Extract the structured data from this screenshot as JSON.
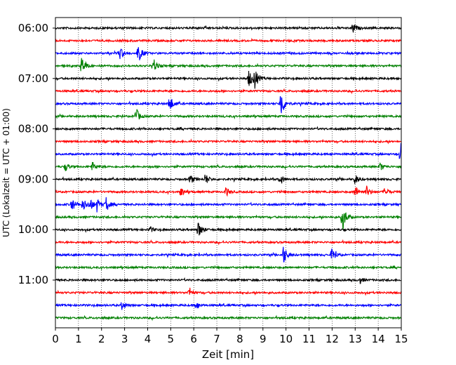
{
  "chart_data": {
    "type": "line",
    "title": "",
    "xlabel": "Zeit  [min]",
    "ylabel": "UTC (Lokalzeit = UTC + 01:00)",
    "xlim": [
      0,
      15
    ],
    "x_ticks": [
      0,
      1,
      2,
      3,
      4,
      5,
      6,
      7,
      8,
      9,
      10,
      11,
      12,
      13,
      14,
      15
    ],
    "vertical_gridlines": true,
    "grid_style": "dotted",
    "y_tick_labels": [
      "06:00",
      "07:00",
      "08:00",
      "09:00",
      "10:00",
      "11:00"
    ],
    "trace_interval_min": 15,
    "colors": [
      "#000000",
      "#ff0000",
      "#0000ff",
      "#008000"
    ],
    "series": [
      {
        "time": "06:00",
        "color": "#000000",
        "events": [
          {
            "x": 12.9,
            "amp": 0.35
          }
        ]
      },
      {
        "time": "06:15",
        "color": "#ff0000",
        "events": []
      },
      {
        "time": "06:30",
        "color": "#0000ff",
        "events": [
          {
            "x": 2.8,
            "amp": 0.45
          },
          {
            "x": 3.6,
            "amp": 0.6
          }
        ]
      },
      {
        "time": "06:45",
        "color": "#008000",
        "events": [
          {
            "x": 1.15,
            "amp": 0.6
          },
          {
            "x": 4.25,
            "amp": 0.45
          }
        ]
      },
      {
        "time": "07:00",
        "color": "#000000",
        "events": [
          {
            "x": 8.4,
            "amp": 0.55
          },
          {
            "x": 8.65,
            "amp": 0.6
          }
        ]
      },
      {
        "time": "07:15",
        "color": "#ff0000",
        "events": []
      },
      {
        "time": "07:30",
        "color": "#0000ff",
        "events": [
          {
            "x": 4.95,
            "amp": 0.55
          },
          {
            "x": 9.78,
            "amp": 1.0
          }
        ]
      },
      {
        "time": "07:45",
        "color": "#008000",
        "events": [
          {
            "x": 3.5,
            "amp": 0.5
          }
        ]
      },
      {
        "time": "08:00",
        "color": "#000000",
        "events": []
      },
      {
        "time": "08:15",
        "color": "#ff0000",
        "events": []
      },
      {
        "time": "08:30",
        "color": "#0000ff",
        "events": [
          {
            "x": 14.97,
            "amp": 0.8
          }
        ]
      },
      {
        "time": "08:45",
        "color": "#008000",
        "events": [
          {
            "x": 0.45,
            "amp": 0.25
          },
          {
            "x": 1.6,
            "amp": 0.3
          },
          {
            "x": 14.1,
            "amp": 0.25
          }
        ]
      },
      {
        "time": "09:00",
        "color": "#000000",
        "events": [
          {
            "x": 5.85,
            "amp": 0.3
          },
          {
            "x": 6.5,
            "amp": 0.35
          },
          {
            "x": 9.75,
            "amp": 0.35
          },
          {
            "x": 13.0,
            "amp": 0.3
          }
        ]
      },
      {
        "time": "09:15",
        "color": "#ff0000",
        "events": [
          {
            "x": 5.45,
            "amp": 0.3
          },
          {
            "x": 7.4,
            "amp": 0.3
          },
          {
            "x": 13.0,
            "amp": 0.35
          },
          {
            "x": 13.5,
            "amp": 0.35
          },
          {
            "x": 14.3,
            "amp": 0.3
          }
        ]
      },
      {
        "time": "09:30",
        "color": "#0000ff",
        "events": [
          {
            "x": 0.7,
            "amp": 0.45
          },
          {
            "x": 1.2,
            "amp": 0.4
          },
          {
            "x": 1.5,
            "amp": 0.4
          },
          {
            "x": 1.8,
            "amp": 0.4
          },
          {
            "x": 2.2,
            "amp": 0.45
          }
        ]
      },
      {
        "time": "09:45",
        "color": "#008000",
        "events": [
          {
            "x": 12.45,
            "amp": 0.9
          }
        ]
      },
      {
        "time": "10:00",
        "color": "#000000",
        "events": [
          {
            "x": 6.2,
            "amp": 0.55
          },
          {
            "x": 4.1,
            "amp": 0.2
          }
        ]
      },
      {
        "time": "10:15",
        "color": "#ff0000",
        "events": []
      },
      {
        "time": "10:30",
        "color": "#0000ff",
        "events": [
          {
            "x": 9.9,
            "amp": 0.6
          },
          {
            "x": 12.0,
            "amp": 0.5
          }
        ]
      },
      {
        "time": "10:45",
        "color": "#008000",
        "events": []
      },
      {
        "time": "11:00",
        "color": "#000000",
        "events": [
          {
            "x": 13.2,
            "amp": 0.2
          }
        ]
      },
      {
        "time": "11:15",
        "color": "#ff0000",
        "events": [
          {
            "x": 5.8,
            "amp": 0.25
          }
        ]
      },
      {
        "time": "11:30",
        "color": "#0000ff",
        "events": [
          {
            "x": 2.9,
            "amp": 0.3
          },
          {
            "x": 6.1,
            "amp": 0.25
          }
        ]
      },
      {
        "time": "11:45",
        "color": "#008000",
        "events": []
      }
    ]
  }
}
